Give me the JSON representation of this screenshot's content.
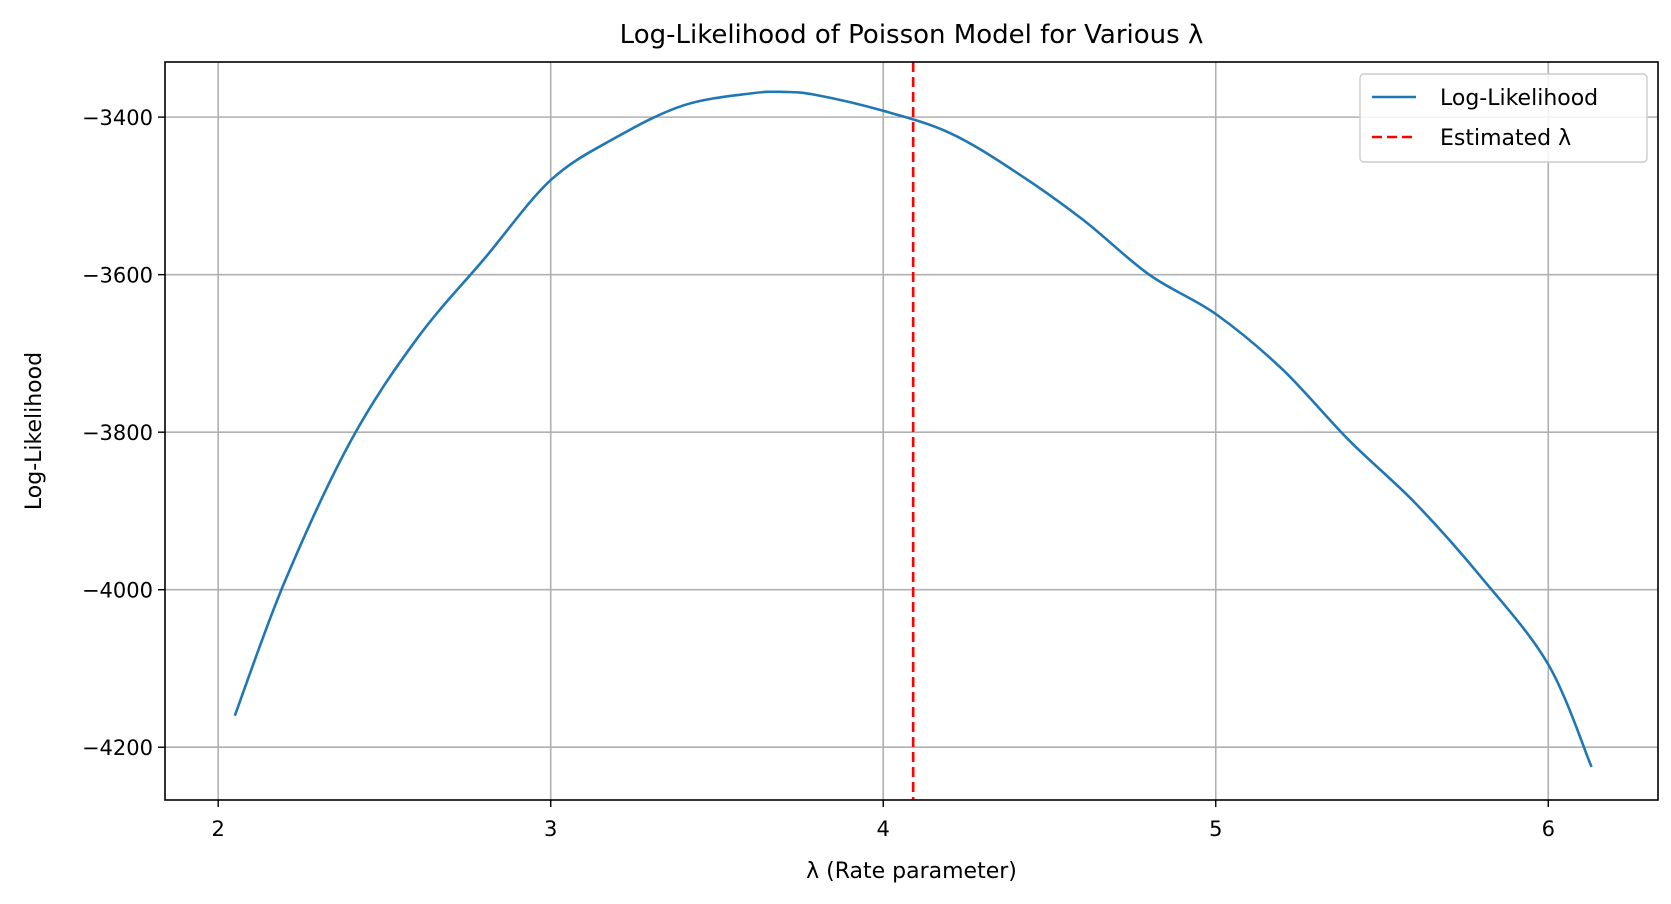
{
  "chart_data": {
    "type": "line",
    "title": "Log-Likelihood of Poisson Model for Various λ",
    "xlabel": "λ (Rate parameter)",
    "ylabel": "Log-Likelihood",
    "xlim": [
      1.84,
      6.33
    ],
    "ylim": [
      -4267,
      -3330
    ],
    "xticks": [
      2,
      3,
      4,
      5,
      6
    ],
    "yticks": [
      -3400,
      -3600,
      -3800,
      -4000,
      -4200
    ],
    "xtick_labels": [
      "2",
      "3",
      "4",
      "5",
      "6"
    ],
    "ytick_labels": [
      "−3400",
      "−3600",
      "−3800",
      "−4000",
      "−4200"
    ],
    "grid": true,
    "legend": {
      "placement": "top-right",
      "entries": [
        "Log-Likelihood",
        "Estimated λ"
      ]
    },
    "series": [
      {
        "name": "Log-Likelihood",
        "color": "#1f77b4",
        "style": "solid",
        "x": [
          2.05,
          2.2,
          2.4,
          2.6,
          2.8,
          3.0,
          3.2,
          3.4,
          3.6,
          3.7,
          3.8,
          4.0,
          4.2,
          4.4,
          4.6,
          4.8,
          5.0,
          5.2,
          5.4,
          5.6,
          5.8,
          6.0,
          6.13
        ],
        "y": [
          -4160,
          -3990,
          -3810,
          -3680,
          -3580,
          -3480,
          -3425,
          -3385,
          -3370,
          -3368,
          -3372,
          -3392,
          -3420,
          -3470,
          -3530,
          -3600,
          -3650,
          -3720,
          -3810,
          -3890,
          -3985,
          -4095,
          -4225
        ]
      }
    ],
    "vlines": [
      {
        "name": "Estimated λ",
        "x": 4.09,
        "color": "#ff0000",
        "style": "dashed"
      }
    ]
  }
}
